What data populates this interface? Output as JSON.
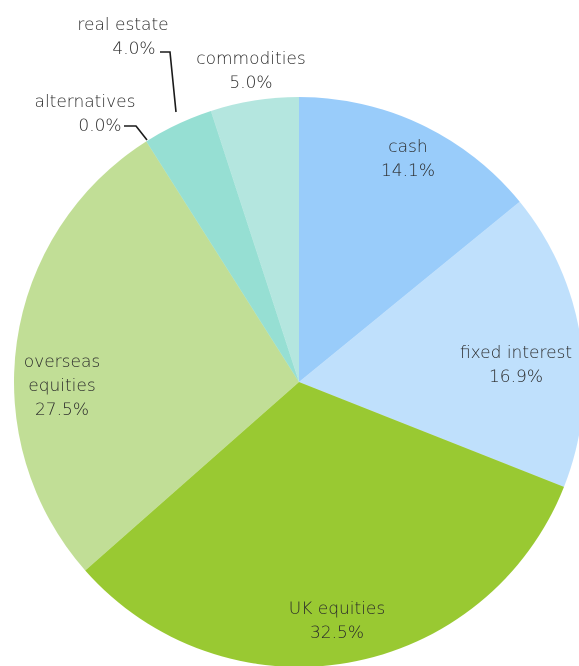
{
  "chart_data": {
    "type": "pie",
    "title": "",
    "slices": [
      {
        "name": "cash",
        "value": 14.1,
        "label": "14.1%",
        "color": "#99ccfa"
      },
      {
        "name": "fixed interest",
        "value": 16.9,
        "label": "16.9%",
        "color": "#bfe0fc"
      },
      {
        "name": "UK equities",
        "value": 32.5,
        "label": "32.5%",
        "color": "#99c932"
      },
      {
        "name": "overseas equities",
        "value": 27.5,
        "label": "27.5%",
        "color": "#c1de96"
      },
      {
        "name": "alternatives",
        "value": 0.0,
        "label": "0.0%",
        "color": "#c1de96"
      },
      {
        "name": "real estate",
        "value": 4.0,
        "label": "4.0%",
        "color": "#96dfd3"
      },
      {
        "name": "commodities",
        "value": 5.0,
        "label": "5.0%",
        "color": "#b4e6df"
      }
    ],
    "legend": "none",
    "start": "top, clockwise"
  }
}
